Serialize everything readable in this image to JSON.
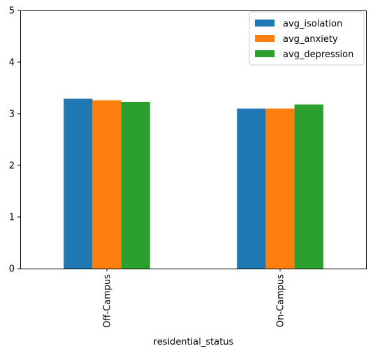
{
  "chart_data": {
    "type": "bar",
    "title": "",
    "xlabel": "residential_status",
    "ylabel": "",
    "categories": [
      "Off-Campus",
      "On-Campus"
    ],
    "ylim": [
      0,
      5
    ],
    "yticks": [
      0,
      1,
      2,
      3,
      4,
      5
    ],
    "grid": false,
    "legend_position": "top-right",
    "series": [
      {
        "name": "avg_isolation",
        "color": "#1f77b4",
        "values": [
          3.29,
          3.1
        ]
      },
      {
        "name": "avg_anxiety",
        "color": "#ff7f0e",
        "values": [
          3.26,
          3.1
        ]
      },
      {
        "name": "avg_depression",
        "color": "#2ca02c",
        "values": [
          3.23,
          3.18
        ]
      }
    ]
  }
}
